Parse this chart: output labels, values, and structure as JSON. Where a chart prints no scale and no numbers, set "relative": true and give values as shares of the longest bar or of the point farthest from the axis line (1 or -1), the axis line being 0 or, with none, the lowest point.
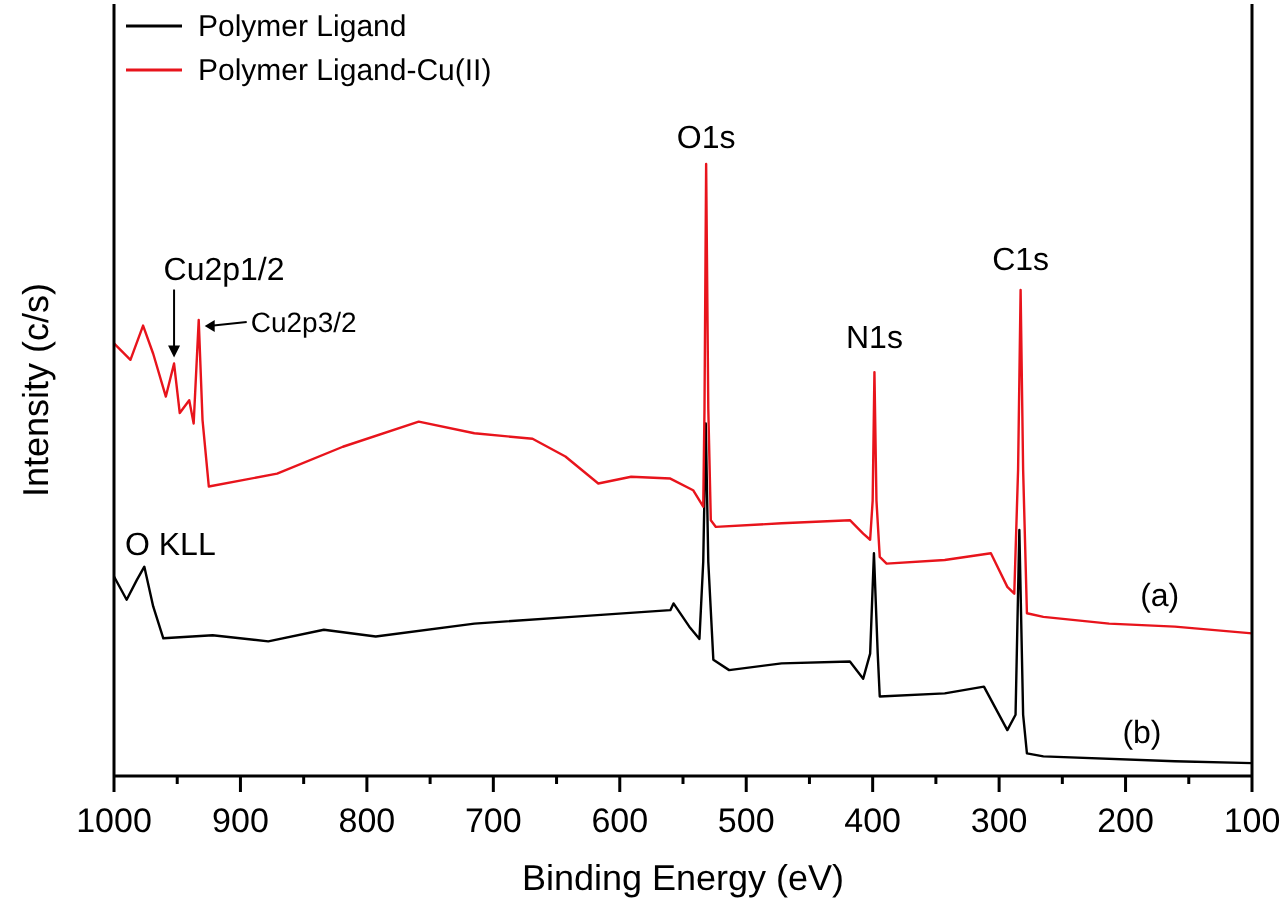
{
  "chart_data": {
    "type": "line",
    "relative": true,
    "xlabel": "Binding Energy (eV)",
    "ylabel": "Intensity (c/s)",
    "legend": "top left",
    "grid": false,
    "xlim": [
      1000,
      100
    ],
    "xticks": [
      1000,
      {
        "value": 950,
        "label": null
      },
      900,
      {
        "value": 850,
        "label": null
      },
      800,
      {
        "value": 750,
        "label": null
      },
      700,
      {
        "value": 650,
        "label": null
      },
      600,
      {
        "value": 550,
        "label": null
      },
      500,
      {
        "value": 450,
        "label": null
      },
      400,
      {
        "value": 350,
        "label": null
      },
      300,
      {
        "value": 250,
        "label": null
      },
      200,
      {
        "value": 150,
        "label": null
      },
      100
    ],
    "series": [
      {
        "name": "Polymer Ligand",
        "color": "#000000",
        "x": [
          1000,
          990,
          982,
          976,
          969,
          961,
          922,
          878,
          834,
          793,
          715,
          638,
          560,
          557.5,
          545,
          537,
          534,
          532,
          530,
          526,
          513.5,
          472,
          418,
          407.5,
          402,
          399,
          396,
          394.4,
          343,
          312,
          293.5,
          287,
          284,
          281,
          278,
          265,
          161,
          100
        ],
        "values": [
          0.326,
          0.288,
          0.32,
          0.342,
          0.277,
          0.225,
          0.23,
          0.22,
          0.239,
          0.228,
          0.249,
          0.26,
          0.271,
          0.282,
          0.244,
          0.224,
          0.35,
          0.576,
          0.35,
          0.19,
          0.173,
          0.184,
          0.187,
          0.159,
          0.2,
          0.364,
          0.2,
          0.13,
          0.135,
          0.146,
          0.075,
          0.1,
          0.402,
          0.1,
          0.037,
          0.032,
          0.024,
          0.021
        ]
      },
      {
        "name": "Polymer Ligand-Cu(II)",
        "color": "#e8141c",
        "x": [
          1000,
          987,
          977,
          969,
          959,
          952.5,
          948,
          940.5,
          937,
          933,
          930,
          925,
          871,
          819,
          759,
          715,
          669,
          643,
          617,
          591,
          560,
          542,
          534,
          533,
          531.7,
          530,
          528,
          524,
          472,
          418,
          407.5,
          402,
          400,
          398.6,
          397,
          394.4,
          389,
          343,
          306.5,
          293.5,
          288,
          285,
          283,
          281,
          278,
          265,
          213,
          161,
          100
        ],
        "values": [
          0.707,
          0.68,
          0.736,
          0.69,
          0.62,
          0.674,
          0.593,
          0.614,
          0.576,
          0.745,
          0.582,
          0.473,
          0.494,
          0.538,
          0.579,
          0.56,
          0.551,
          0.522,
          0.478,
          0.489,
          0.486,
          0.467,
          0.44,
          0.6,
          1.0,
          0.6,
          0.418,
          0.407,
          0.413,
          0.418,
          0.396,
          0.386,
          0.45,
          0.66,
          0.45,
          0.358,
          0.347,
          0.353,
          0.364,
          0.309,
          0.298,
          0.5,
          0.794,
          0.5,
          0.266,
          0.26,
          0.249,
          0.244,
          0.233
        ]
      }
    ],
    "annotations": [
      {
        "text": "O1s",
        "x": 531.7,
        "y": 1.0
      },
      {
        "text": "N1s",
        "x": 398.6,
        "y": 0.66
      },
      {
        "text": "C1s",
        "x": 283,
        "y": 0.794
      },
      {
        "text": "Cu2p1/2",
        "x": 952.5,
        "y": 0.674
      },
      {
        "text": "Cu2p3/2",
        "x": 933,
        "y": 0.745
      },
      {
        "text": "O KLL",
        "x": 976,
        "y": 0.342
      },
      {
        "text": "(a)",
        "x": 173,
        "y": 0.245
      },
      {
        "text": "(b)",
        "x": 187,
        "y": 0.024
      }
    ]
  }
}
